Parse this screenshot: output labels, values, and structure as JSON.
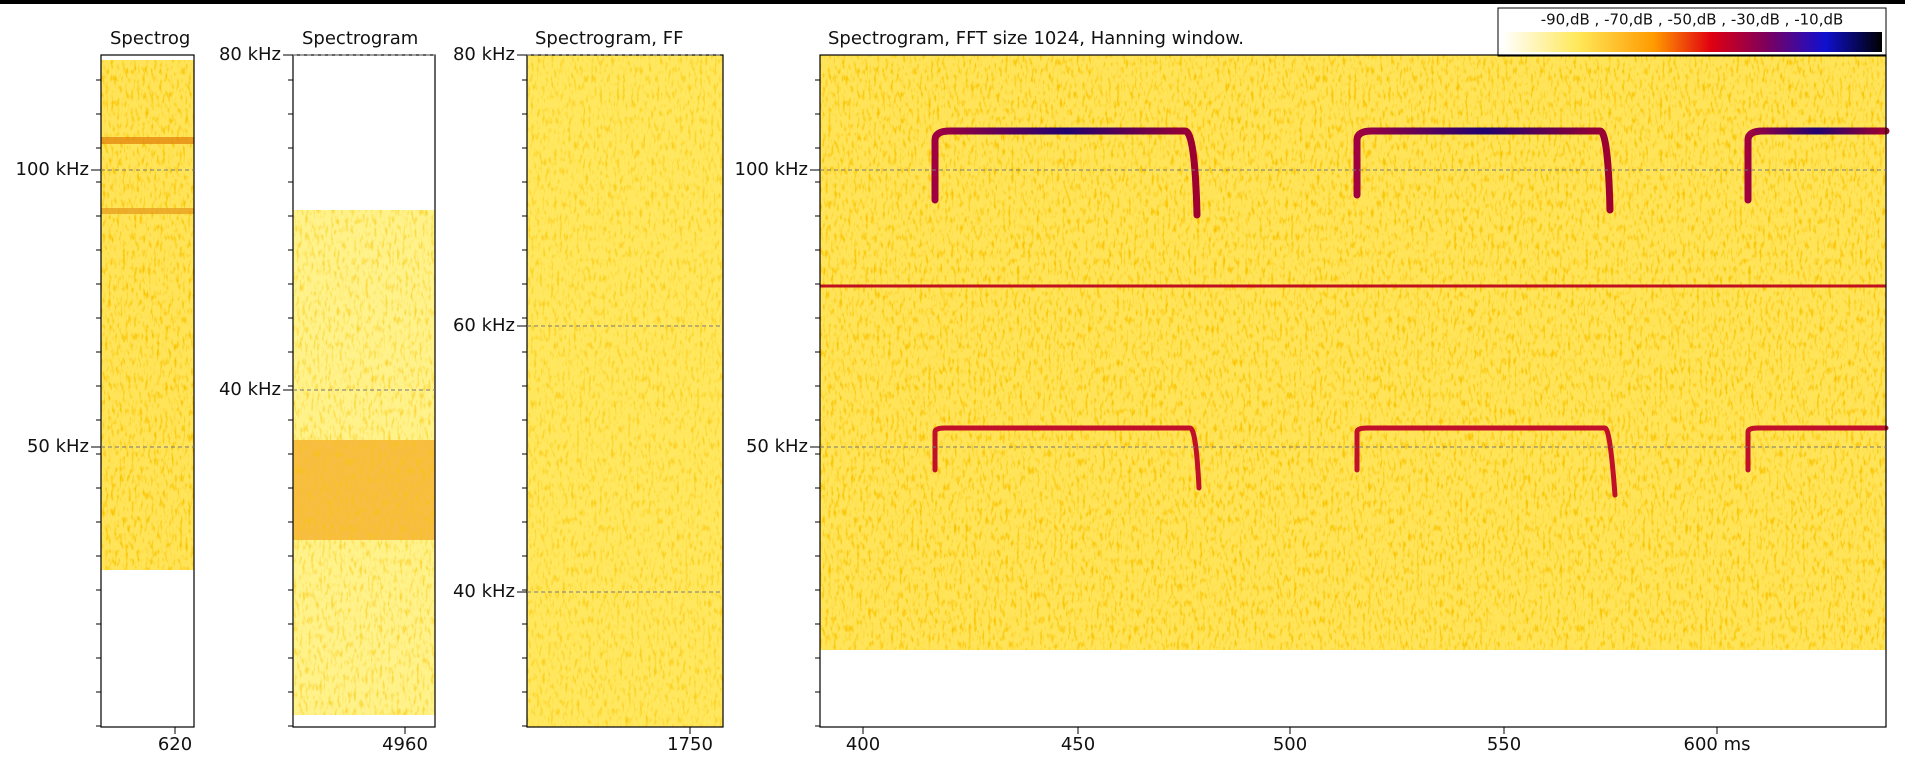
{
  "panels": [
    {
      "title": "Spectrog",
      "yticks": [
        "100 kHz",
        "50 kHz"
      ],
      "xticks": [
        "620"
      ]
    },
    {
      "title": "Spectrogram",
      "yticks": [
        "80 kHz",
        "40 kHz"
      ],
      "xticks": [
        "4960"
      ]
    },
    {
      "title": "Spectrogram, FF",
      "yticks": [
        "80 kHz",
        "60 kHz",
        "40 kHz"
      ],
      "xticks": [
        "1750"
      ]
    },
    {
      "title": "Spectrogram, FFT size 1024, Hanning window.",
      "yticks": [
        "100 kHz",
        "50 kHz"
      ],
      "xticks": [
        "400",
        "450",
        "500",
        "550",
        "600 ms"
      ],
      "colorbar": "-90,dB , -70,dB , -50,dB , -30,dB , -10,dB"
    }
  ]
}
